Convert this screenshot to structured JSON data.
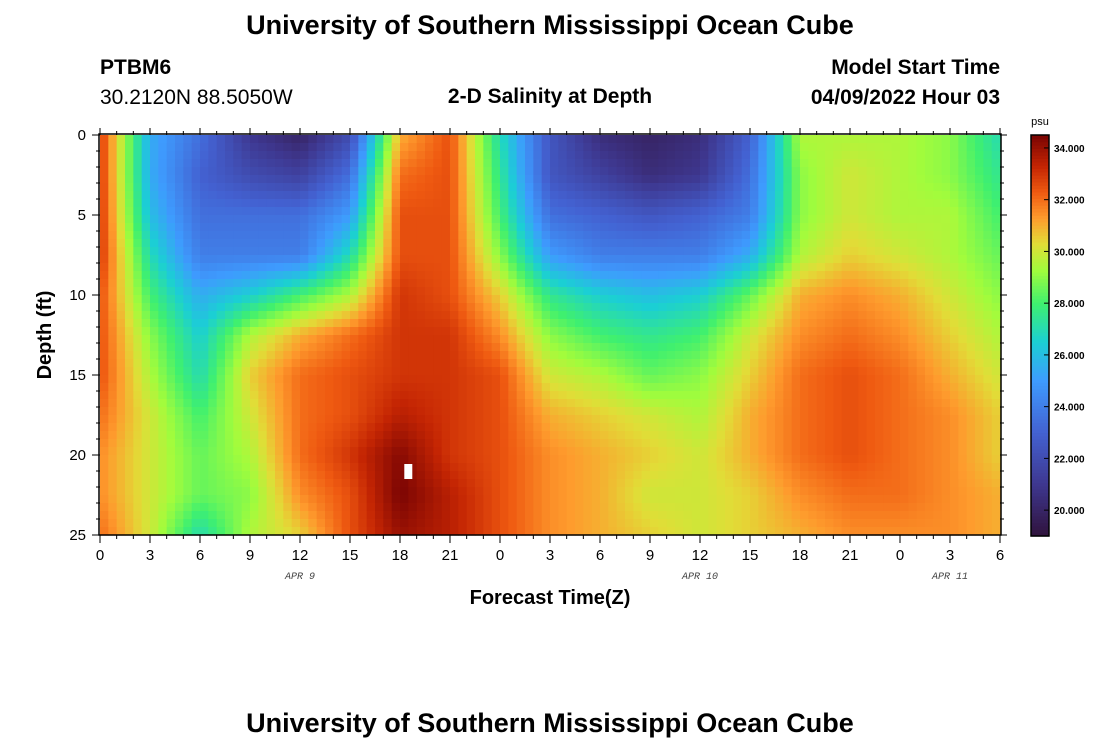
{
  "page": {
    "title": "University of Southern Mississippi Ocean Cube",
    "footer_title": "University of Southern Mississippi Ocean Cube",
    "station": "PTBM6",
    "coords": "30.2120N  88.5050W",
    "subtitle": "2-D Salinity at Depth",
    "model_start_label": "Model Start Time",
    "model_start_value": "04/09/2022 Hour 03"
  },
  "chart_data": {
    "type": "heatmap",
    "title": "2-D Salinity at Depth",
    "xlabel": "Forecast Time(Z)",
    "ylabel": "Depth (ft)",
    "x_hours_since_start": [
      0,
      3,
      6,
      9,
      12,
      15,
      18,
      21,
      24,
      27,
      30,
      33,
      36,
      39,
      42,
      45,
      48,
      51,
      54
    ],
    "x_tick_labels": [
      "0",
      "3",
      "6",
      "9",
      "12",
      "15",
      "18",
      "21",
      "0",
      "3",
      "6",
      "9",
      "12",
      "15",
      "18",
      "21",
      "0",
      "3",
      "6"
    ],
    "date_labels": [
      {
        "text": "APR 9",
        "hour": 12
      },
      {
        "text": "APR 10",
        "hour": 36
      },
      {
        "text": "APR 11",
        "hour": 51
      }
    ],
    "xlim": [
      0,
      54
    ],
    "y_ticks": [
      0,
      5,
      10,
      15,
      20,
      25
    ],
    "ylim": [
      0,
      25
    ],
    "y_inverted": true,
    "colorbar": {
      "unit": "psu",
      "range": [
        19.0,
        34.5
      ],
      "tick_values": [
        20.0,
        22.0,
        24.0,
        26.0,
        28.0,
        30.0,
        32.0,
        34.0
      ],
      "tick_labels": [
        "20.000",
        "22.000",
        "24.000",
        "26.000",
        "28.000",
        "30.000",
        "32.000",
        "34.000"
      ],
      "colormap": [
        {
          "v": 19.0,
          "c": "#30123b"
        },
        {
          "v": 21.0,
          "c": "#3e378f"
        },
        {
          "v": 23.0,
          "c": "#4361d1"
        },
        {
          "v": 25.0,
          "c": "#3e9bfe"
        },
        {
          "v": 26.5,
          "c": "#1bcfd4"
        },
        {
          "v": 28.0,
          "c": "#3ff06f"
        },
        {
          "v": 29.3,
          "c": "#a2fc3c"
        },
        {
          "v": 30.3,
          "c": "#e1dd37"
        },
        {
          "v": 31.3,
          "c": "#fe9b2d"
        },
        {
          "v": 32.3,
          "c": "#ef5a11"
        },
        {
          "v": 33.3,
          "c": "#c42503"
        },
        {
          "v": 34.5,
          "c": "#7a0403"
        }
      ]
    },
    "grid": {
      "time_hours": [
        0,
        3,
        6,
        9,
        12,
        15,
        18,
        21,
        24,
        27,
        30,
        33,
        36,
        39,
        42,
        45,
        48,
        51,
        54
      ],
      "depth_ft": [
        0,
        2.5,
        5,
        7.5,
        10,
        12.5,
        15,
        17.5,
        20,
        22.5,
        25
      ],
      "salinity_psu": [
        [
          33.0,
          25.5,
          23.5,
          21.0,
          20.0,
          22.0,
          31.0,
          32.5,
          27.0,
          22.5,
          20.5,
          20.0,
          20.5,
          23.0,
          29.5,
          29.5,
          29.5,
          29.0,
          27.0
        ],
        [
          33.0,
          25.5,
          23.0,
          22.0,
          21.5,
          23.5,
          32.0,
          32.5,
          27.5,
          22.5,
          21.5,
          20.5,
          21.0,
          23.5,
          29.0,
          30.0,
          29.5,
          29.0,
          27.5
        ],
        [
          33.0,
          26.0,
          23.5,
          23.5,
          23.5,
          25.0,
          32.5,
          32.5,
          28.0,
          23.5,
          23.0,
          22.5,
          23.0,
          24.0,
          29.0,
          30.0,
          29.5,
          29.5,
          28.0
        ],
        [
          33.0,
          27.0,
          24.0,
          24.0,
          24.0,
          27.0,
          32.5,
          32.5,
          29.0,
          25.0,
          24.0,
          24.0,
          24.0,
          25.5,
          29.5,
          30.5,
          30.0,
          29.5,
          28.5
        ],
        [
          32.5,
          28.0,
          25.5,
          26.5,
          28.0,
          29.5,
          33.0,
          32.5,
          30.5,
          27.5,
          26.5,
          26.0,
          26.5,
          28.5,
          31.0,
          31.5,
          31.0,
          30.0,
          29.0
        ],
        [
          32.5,
          29.0,
          26.5,
          29.5,
          31.0,
          32.0,
          33.0,
          33.0,
          31.5,
          29.0,
          28.0,
          27.5,
          28.0,
          30.0,
          31.5,
          32.0,
          31.5,
          30.5,
          29.5
        ],
        [
          32.5,
          29.5,
          27.0,
          30.5,
          32.0,
          32.5,
          33.0,
          33.0,
          32.5,
          30.0,
          29.5,
          28.5,
          29.0,
          30.5,
          32.0,
          32.5,
          32.0,
          31.0,
          30.0
        ],
        [
          32.0,
          30.0,
          28.0,
          30.0,
          32.0,
          32.5,
          33.5,
          33.0,
          32.5,
          31.0,
          30.5,
          30.0,
          29.5,
          31.0,
          32.0,
          32.5,
          32.0,
          31.5,
          30.5
        ],
        [
          31.5,
          30.0,
          28.5,
          29.5,
          32.0,
          33.0,
          34.3,
          33.0,
          32.5,
          31.5,
          31.0,
          30.5,
          30.0,
          31.0,
          32.0,
          32.5,
          32.0,
          31.5,
          30.5
        ],
        [
          31.5,
          30.0,
          28.5,
          29.0,
          31.5,
          32.5,
          34.5,
          33.5,
          32.5,
          31.5,
          31.0,
          30.0,
          30.0,
          30.5,
          31.5,
          32.0,
          32.0,
          31.5,
          31.0
        ],
        [
          32.0,
          30.0,
          27.0,
          29.5,
          30.5,
          32.5,
          34.0,
          33.5,
          32.5,
          31.5,
          31.0,
          30.5,
          30.0,
          30.5,
          31.0,
          31.5,
          31.5,
          31.5,
          31.0
        ]
      ]
    },
    "marker": {
      "time_hours": 18.5,
      "depth_ft": 21
    }
  }
}
